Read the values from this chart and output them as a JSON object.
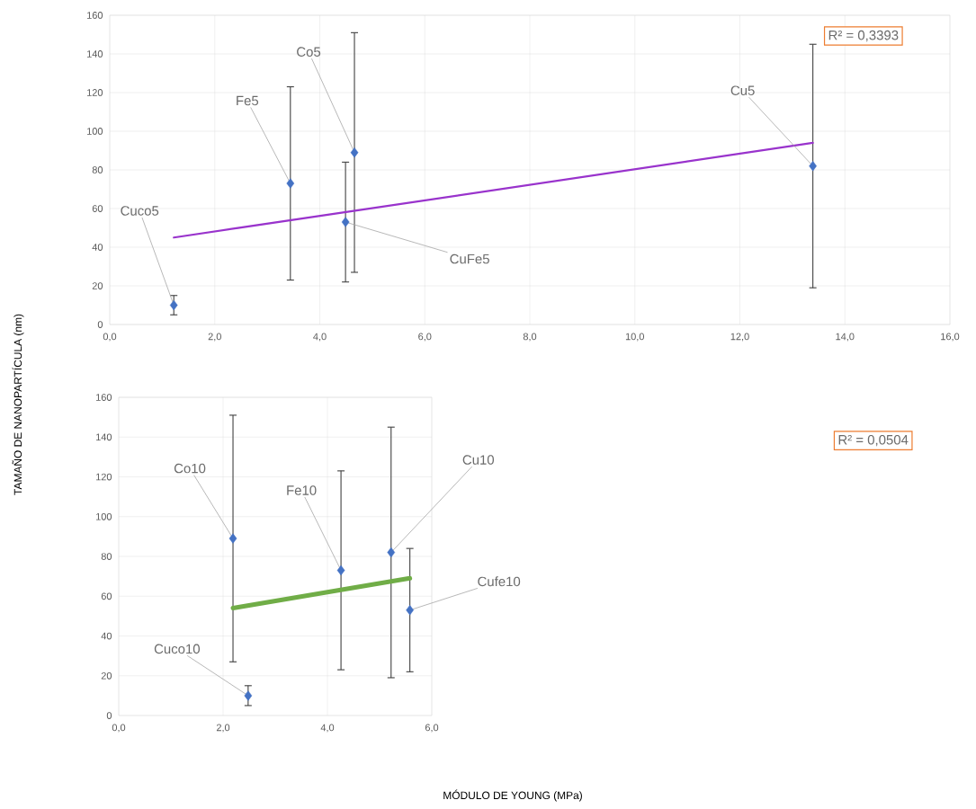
{
  "chart_data": [
    {
      "type": "scatter",
      "ylabel": "TAMAÑO DE NANOPARTÍCULA (nm)",
      "xlim": [
        0,
        16
      ],
      "ylim": [
        0,
        160
      ],
      "xticks": [
        {
          "value": 0,
          "label": "0,0"
        },
        {
          "value": 2,
          "label": "2,0"
        },
        {
          "value": 4,
          "label": "4,0"
        },
        {
          "value": 6,
          "label": "6,0"
        },
        {
          "value": 8,
          "label": "8,0"
        },
        {
          "value": 10,
          "label": "10,0"
        },
        {
          "value": 12,
          "label": "12,0"
        },
        {
          "value": 14,
          "label": "14,0"
        },
        {
          "value": 16,
          "label": "16,0"
        }
      ],
      "yticks": [
        0,
        20,
        40,
        60,
        80,
        100,
        120,
        140,
        160
      ],
      "grid": true,
      "series": [
        {
          "marker": "diamond",
          "color": "#4472c4",
          "x": [
            1.22,
            3.44,
            4.49,
            4.66,
            13.39
          ],
          "values": [
            10,
            73,
            53,
            89,
            82
          ],
          "errors": [
            5,
            50,
            31,
            62,
            63
          ]
        },
        {
          "type": "line",
          "marker": "none",
          "color": "#9933cc",
          "x": [
            1.22,
            13.39
          ],
          "values": [
            45,
            94
          ]
        }
      ],
      "annotations": [
        {
          "text": "Cuco5",
          "x": 1.22,
          "y": 10
        },
        {
          "text": "Fe5",
          "x": 3.44,
          "y": 73
        },
        {
          "text": "CuFe5",
          "x": 4.49,
          "y": 53
        },
        {
          "text": "Co5",
          "x": 4.66,
          "y": 89
        },
        {
          "text": "Cu5",
          "x": 13.39,
          "y": 82
        },
        "R² = 0,3393"
      ]
    },
    {
      "type": "scatter",
      "xlabel": "MÓDULO DE YOUNG (MPa)",
      "xlim": [
        0,
        6
      ],
      "ylim": [
        0,
        160
      ],
      "xticks": [
        {
          "value": 0,
          "label": "0,0"
        },
        {
          "value": 2,
          "label": "2,0"
        },
        {
          "value": 4,
          "label": "4,0"
        },
        {
          "value": 6,
          "label": "6,0"
        }
      ],
      "yticks": [
        0,
        20,
        40,
        60,
        80,
        100,
        120,
        140,
        160
      ],
      "grid": true,
      "series": [
        {
          "marker": "diamond",
          "color": "#4472c4",
          "x": [
            2.19,
            2.48,
            4.26,
            5.22,
            5.58
          ],
          "values": [
            89,
            10,
            73,
            82,
            53
          ],
          "errors": [
            62,
            5,
            50,
            63,
            31
          ]
        },
        {
          "type": "line",
          "marker": "none",
          "color": "#70ad47",
          "x": [
            2.19,
            5.58
          ],
          "values": [
            54,
            69
          ]
        }
      ],
      "annotations": [
        {
          "text": "Co10",
          "x": 2.19,
          "y": 89
        },
        {
          "text": "Cuco10",
          "x": 2.48,
          "y": 10
        },
        {
          "text": "Fe10",
          "x": 4.26,
          "y": 73
        },
        {
          "text": "Cu10",
          "x": 5.22,
          "y": 82
        },
        {
          "text": "Cufe10",
          "x": 5.58,
          "y": 53
        },
        "R² = 0,0504"
      ]
    }
  ]
}
